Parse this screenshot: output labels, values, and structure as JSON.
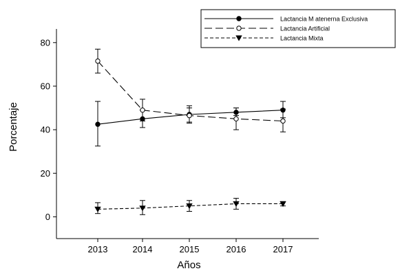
{
  "chart_data": {
    "type": "line",
    "xlabel": "Años",
    "ylabel": "Porcentaje",
    "categories": [
      "2013",
      "2014",
      "2015",
      "2016",
      "2017"
    ],
    "ylim": [
      -10,
      85
    ],
    "yticks": [
      0,
      20,
      40,
      60,
      80
    ],
    "grid": false,
    "legend_position": "top-right",
    "series": [
      {
        "name": "Lactancia M atenerna Exclusiva",
        "marker": "filled-circle",
        "dash": "solid",
        "values": [
          42.5,
          45,
          47,
          48,
          49
        ],
        "err_low": [
          32.5,
          41,
          43,
          46.5,
          45.5
        ],
        "err_high": [
          53,
          49,
          51,
          50,
          53
        ]
      },
      {
        "name": "Lactancia Artificial",
        "marker": "open-circle",
        "dash": "long-dash",
        "values": [
          71.5,
          49,
          46.5,
          45,
          44
        ],
        "err_low": [
          66,
          44,
          43.5,
          40,
          39
        ],
        "err_high": [
          77,
          54,
          50,
          50,
          49.5
        ]
      },
      {
        "name": "Lactancia Mixta",
        "marker": "filled-triangle-down",
        "dash": "short-dash",
        "values": [
          3.5,
          4,
          5,
          6,
          6
        ],
        "err_low": [
          1.5,
          1,
          2.5,
          3.5,
          5
        ],
        "err_high": [
          6.5,
          7.5,
          7.5,
          8.5,
          7
        ]
      }
    ]
  }
}
